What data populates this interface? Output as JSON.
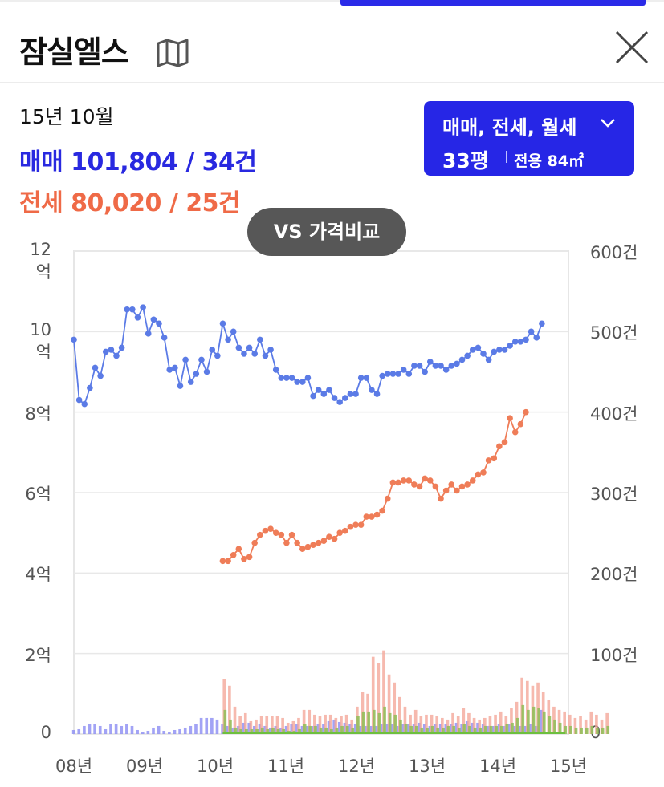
{
  "header": {
    "title": "잠실엘스",
    "close_icon": "close-icon",
    "map_icon": "map-icon"
  },
  "summary": {
    "date": "15년 10월",
    "sale_text": "매매 101,804 / 34건",
    "jeonse_text": "전세 80,020 / 25건"
  },
  "filter": {
    "deal_types": "매매, 전세, 월세",
    "size": "33평",
    "area": "전용 84㎡"
  },
  "compare_button": "VS 가격비교",
  "colors": {
    "sale": "#5b7be6",
    "jeonse": "#ef7d58",
    "accent": "#2626e6"
  },
  "chart_data": {
    "type": "line",
    "y_left_label_ticks": [
      "0",
      "2억",
      "4억",
      "6억",
      "8억",
      "10억",
      "12억"
    ],
    "y_left_range": [
      0,
      12
    ],
    "y_left_unit": "억",
    "y_right_label_ticks": [
      "0",
      "100건",
      "200건",
      "300건",
      "400건",
      "500건",
      "600건"
    ],
    "y_right_range": [
      0,
      600
    ],
    "x_ticks": [
      "08년",
      "09년",
      "10년",
      "11년",
      "12년",
      "13년",
      "14년",
      "15년"
    ],
    "x_range": [
      2008.0,
      2015.75
    ],
    "grid": true,
    "series": [
      {
        "name": "매매",
        "color": "#5b7be6",
        "x_start": 2008.0,
        "values": [
          9.8,
          8.3,
          8.2,
          8.6,
          9.1,
          8.9,
          9.5,
          9.55,
          9.4,
          9.6,
          10.55,
          10.55,
          10.35,
          10.6,
          9.95,
          10.3,
          10.2,
          9.85,
          9.05,
          9.1,
          8.65,
          9.3,
          8.75,
          8.95,
          9.3,
          9.0,
          9.55,
          9.4,
          10.2,
          9.8,
          10.0,
          9.6,
          9.45,
          9.6,
          9.45,
          9.8,
          9.4,
          9.55,
          9.05,
          8.85,
          8.85,
          8.85,
          8.75,
          8.75,
          8.85,
          8.4,
          8.55,
          8.45,
          8.55,
          8.35,
          8.25,
          8.35,
          8.45,
          8.45,
          8.85,
          8.85,
          8.55,
          8.45,
          8.9,
          8.95,
          8.95,
          8.95,
          9.05,
          8.95,
          9.15,
          9.15,
          9.0,
          9.25,
          9.15,
          9.15,
          9.05,
          9.15,
          9.2,
          9.3,
          9.4,
          9.55,
          9.6,
          9.45,
          9.3,
          9.5,
          9.55,
          9.55,
          9.65,
          9.75,
          9.75,
          9.8,
          10.0,
          9.85,
          10.2
        ]
      },
      {
        "name": "전세",
        "color": "#ef7d58",
        "x_start": 2010.333,
        "values": [
          4.3,
          4.3,
          4.45,
          4.6,
          4.35,
          4.4,
          4.75,
          4.95,
          5.05,
          5.1,
          5.0,
          4.95,
          4.75,
          4.95,
          4.75,
          4.6,
          4.65,
          4.7,
          4.75,
          4.8,
          4.9,
          4.85,
          5.0,
          5.05,
          5.15,
          5.2,
          5.2,
          5.4,
          5.4,
          5.45,
          5.55,
          5.85,
          6.25,
          6.25,
          6.3,
          6.3,
          6.2,
          6.15,
          6.35,
          6.3,
          6.15,
          5.85,
          6.05,
          6.2,
          6.05,
          6.15,
          6.2,
          6.3,
          6.45,
          6.5,
          6.8,
          6.85,
          7.15,
          7.25,
          7.85,
          7.5,
          7.7,
          8.0
        ]
      }
    ],
    "volume_series": [
      {
        "name": "매매 거래량",
        "color": "#8b8cf3",
        "x_start": 2008.0,
        "values": [
          5,
          6,
          10,
          12,
          12,
          10,
          6,
          12,
          12,
          10,
          12,
          10,
          5,
          3,
          4,
          8,
          10,
          4,
          2,
          5,
          6,
          8,
          10,
          12,
          20,
          20,
          20,
          18,
          12,
          10,
          8,
          10,
          14,
          14,
          10,
          12,
          10,
          8,
          10,
          8,
          10,
          12,
          12,
          10,
          10,
          10,
          12,
          12,
          16,
          18,
          15,
          14,
          12,
          12,
          10,
          10,
          10,
          10,
          12,
          12,
          12,
          10,
          12,
          12,
          12,
          14,
          12,
          10,
          12,
          12,
          12,
          12,
          14,
          12,
          16,
          14,
          14,
          12,
          10,
          10,
          12,
          10,
          12,
          10,
          10,
          10,
          12,
          10,
          30
        ]
      },
      {
        "name": "전세 거래량",
        "color": "#f4a79a",
        "x_start": 2010.333,
        "values": [
          68,
          60,
          34,
          22,
          26,
          16,
          18,
          22,
          22,
          22,
          22,
          20,
          14,
          16,
          20,
          30,
          30,
          24,
          22,
          24,
          24,
          20,
          22,
          24,
          18,
          34,
          52,
          50,
          96,
          88,
          104,
          74,
          64,
          46,
          34,
          24,
          30,
          22,
          24,
          24,
          22,
          20,
          18,
          26,
          22,
          32,
          26,
          20,
          18,
          20,
          22,
          24,
          28,
          22,
          32,
          40,
          70,
          66,
          60,
          64,
          52,
          42,
          34,
          30,
          28,
          24,
          20,
          22,
          18,
          28,
          24,
          18,
          26
        ]
      },
      {
        "name": "월세 거래량",
        "color": "#8fbd56",
        "x_start": 2010.333,
        "values": [
          30,
          18,
          8,
          6,
          6,
          6,
          6,
          8,
          6,
          8,
          6,
          6,
          4,
          4,
          6,
          12,
          10,
          10,
          8,
          8,
          6,
          8,
          10,
          10,
          8,
          22,
          28,
          28,
          30,
          26,
          34,
          26,
          24,
          18,
          12,
          10,
          10,
          8,
          8,
          10,
          8,
          8,
          10,
          10,
          8,
          12,
          10,
          8,
          8,
          10,
          10,
          10,
          10,
          12,
          14,
          20,
          36,
          30,
          34,
          32,
          28,
          22,
          18,
          14,
          10,
          10,
          8,
          8,
          8,
          10,
          8,
          8,
          10
        ]
      }
    ]
  }
}
